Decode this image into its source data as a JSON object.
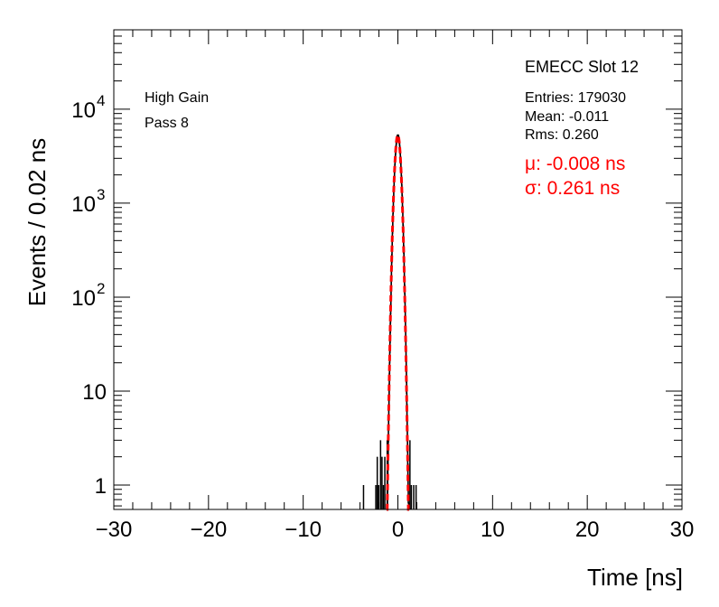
{
  "chart_data": {
    "type": "histogram",
    "title": "",
    "xlabel": "Time [ns]",
    "ylabel": "Events / 0.02 ns",
    "xlim": [
      -30,
      30
    ],
    "ylim": [
      0.55,
      70000
    ],
    "yscale": "log",
    "x_ticks": [
      "−30",
      "−20",
      "−10",
      "0",
      "10",
      "20",
      "30"
    ],
    "x_tick_values": [
      -30,
      -20,
      -10,
      0,
      10,
      20,
      30
    ],
    "y_ticks": [
      {
        "value": 1,
        "base": "1",
        "exp": ""
      },
      {
        "value": 10,
        "base": "10",
        "exp": ""
      },
      {
        "value": 100,
        "base": "10",
        "exp": "2"
      },
      {
        "value": 1000,
        "base": "10",
        "exp": "3"
      },
      {
        "value": 10000,
        "base": "10",
        "exp": "4"
      }
    ],
    "annotations": {
      "gain": "High Gain",
      "pass": "Pass 8",
      "slot": "EMECC Slot 12",
      "entries": "Entries: 179030",
      "mean": "Mean: -0.011",
      "rms": "Rms: 0.260",
      "fit_mu": "μ: -0.008 ns",
      "fit_sigma": "σ: 0.261 ns"
    },
    "histogram": {
      "line_color": "#000000",
      "peak_mean": -0.008,
      "peak_sigma": 0.261,
      "peak_height": 5300,
      "outlier_bins": [
        {
          "x": -3.7,
          "y": 1
        },
        {
          "x": -2.4,
          "y": 1
        },
        {
          "x": -2.25,
          "y": 2
        },
        {
          "x": -2.1,
          "y": 1
        },
        {
          "x": -1.9,
          "y": 3
        },
        {
          "x": -1.75,
          "y": 2
        },
        {
          "x": -1.6,
          "y": 1
        },
        {
          "x": -1.45,
          "y": 2
        },
        {
          "x": -1.2,
          "y": 3
        },
        {
          "x": 1.2,
          "y": 3
        },
        {
          "x": 1.35,
          "y": 1
        },
        {
          "x": 1.6,
          "y": 1
        },
        {
          "x": 1.85,
          "y": 1
        }
      ]
    },
    "fit": {
      "color": "#ff0000",
      "mu": -0.008,
      "sigma": 0.261,
      "amplitude": 5300,
      "range": [
        -1.2,
        1.2
      ]
    }
  }
}
